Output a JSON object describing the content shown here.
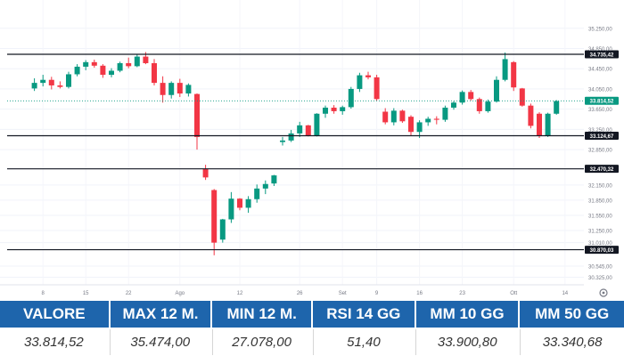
{
  "chart_data": {
    "type": "candlestick",
    "y_axis_ticks": [
      "35.250,00",
      "34.850,00",
      "34.450,00",
      "34.050,00",
      "33.650,00",
      "33.250,00",
      "32.850,00",
      "32.150,00",
      "31.850,00",
      "31.550,00",
      "31.250,00",
      "31.010,00",
      "30.545,00",
      "30.325,00"
    ],
    "x_axis_ticks": [
      {
        "label": "8",
        "idx": 1
      },
      {
        "label": "15",
        "idx": 6
      },
      {
        "label": "22",
        "idx": 11
      },
      {
        "label": "Ago",
        "idx": 17
      },
      {
        "label": "12",
        "idx": 24
      },
      {
        "label": "26",
        "idx": 31
      },
      {
        "label": "Set",
        "idx": 36
      },
      {
        "label": "9",
        "idx": 40
      },
      {
        "label": "16",
        "idx": 45
      },
      {
        "label": "23",
        "idx": 50
      },
      {
        "label": "Ott",
        "idx": 56
      },
      {
        "label": "14",
        "idx": 62
      }
    ],
    "level_lines": [
      {
        "value": 34735.42,
        "label": "34.735,42",
        "color": "#131722",
        "style": "solid"
      },
      {
        "value": 33124.67,
        "label": "33.124,67",
        "color": "#131722",
        "style": "solid"
      },
      {
        "value": 32470.32,
        "label": "32.470,32",
        "color": "#131722",
        "style": "solid"
      },
      {
        "value": 30870.03,
        "label": "30.870,03",
        "color": "#131722",
        "style": "solid"
      },
      {
        "value": 33814.52,
        "label": "33.814,52",
        "color": "#089981",
        "style": "dotted"
      }
    ],
    "candles": [
      [
        34060,
        34260,
        34010,
        34170
      ],
      [
        34170,
        34330,
        34100,
        34230
      ],
      [
        34230,
        34290,
        34040,
        34120
      ],
      [
        34120,
        34200,
        34060,
        34090
      ],
      [
        34090,
        34390,
        34060,
        34340
      ],
      [
        34340,
        34540,
        34300,
        34490
      ],
      [
        34490,
        34620,
        34420,
        34580
      ],
      [
        34580,
        34630,
        34470,
        34510
      ],
      [
        34510,
        34540,
        34270,
        34330
      ],
      [
        34330,
        34460,
        34280,
        34410
      ],
      [
        34410,
        34590,
        34380,
        34560
      ],
      [
        34560,
        34670,
        34460,
        34500
      ],
      [
        34500,
        34740,
        34480,
        34690
      ],
      [
        34690,
        34780,
        34540,
        34560
      ],
      [
        34560,
        34640,
        34120,
        34170
      ],
      [
        34170,
        34300,
        33780,
        33930
      ],
      [
        33930,
        34200,
        33860,
        34170
      ],
      [
        34170,
        34250,
        33890,
        33960
      ],
      [
        33960,
        34160,
        33900,
        34130
      ],
      [
        33950,
        33960,
        32850,
        33100
      ],
      [
        32470,
        32550,
        32250,
        32300
      ],
      [
        32050,
        32070,
        30760,
        31010
      ],
      [
        31070,
        31480,
        31010,
        31470
      ],
      [
        31470,
        32010,
        31400,
        31880
      ],
      [
        31880,
        31890,
        31650,
        31700
      ],
      [
        31700,
        31930,
        31600,
        31870
      ],
      [
        31870,
        32160,
        31800,
        32080
      ],
      [
        32080,
        32240,
        31970,
        32170
      ],
      [
        32180,
        32350,
        32130,
        32340
      ],
      [
        33000,
        33100,
        32930,
        33030
      ],
      [
        33030,
        33240,
        33000,
        33170
      ],
      [
        33170,
        33400,
        33100,
        33330
      ],
      [
        33330,
        33340,
        33110,
        33130
      ],
      [
        33130,
        33570,
        33110,
        33560
      ],
      [
        33560,
        33720,
        33480,
        33680
      ],
      [
        33680,
        33730,
        33560,
        33610
      ],
      [
        33610,
        33720,
        33540,
        33690
      ],
      [
        33690,
        34090,
        33660,
        34050
      ],
      [
        34050,
        34370,
        33990,
        34320
      ],
      [
        34320,
        34390,
        34240,
        34280
      ],
      [
        34280,
        34330,
        33810,
        33850
      ],
      [
        33600,
        33670,
        33350,
        33390
      ],
      [
        33390,
        33670,
        33330,
        33620
      ],
      [
        33620,
        33640,
        33380,
        33410
      ],
      [
        33500,
        33530,
        33130,
        33200
      ],
      [
        33200,
        33430,
        33080,
        33390
      ],
      [
        33390,
        33500,
        33320,
        33460
      ],
      [
        33460,
        33510,
        33350,
        33440
      ],
      [
        33440,
        33720,
        33400,
        33680
      ],
      [
        33680,
        33810,
        33640,
        33780
      ],
      [
        33780,
        34020,
        33740,
        33990
      ],
      [
        33990,
        34030,
        33820,
        33850
      ],
      [
        33850,
        33880,
        33560,
        33610
      ],
      [
        33610,
        33840,
        33580,
        33800
      ],
      [
        33800,
        34300,
        33780,
        34230
      ],
      [
        34230,
        34770,
        34200,
        34640
      ],
      [
        34580,
        34600,
        34010,
        34080
      ],
      [
        34060,
        34070,
        33700,
        33720
      ],
      [
        33720,
        33760,
        33270,
        33320
      ],
      [
        33560,
        33590,
        33080,
        33120
      ],
      [
        33120,
        33580,
        33100,
        33560
      ],
      [
        33560,
        33830,
        33540,
        33810
      ]
    ]
  },
  "stats": {
    "headers": [
      "VALORE",
      "MAX 12 M.",
      "MIN 12 M.",
      "RSI 14 GG",
      "MM 10 GG",
      "MM 50 GG"
    ],
    "values": [
      "33.814,52",
      "35.474,00",
      "27.078,00",
      "51,40",
      "33.900,80",
      "33.340,68"
    ],
    "header_color": "#1e65ac"
  }
}
